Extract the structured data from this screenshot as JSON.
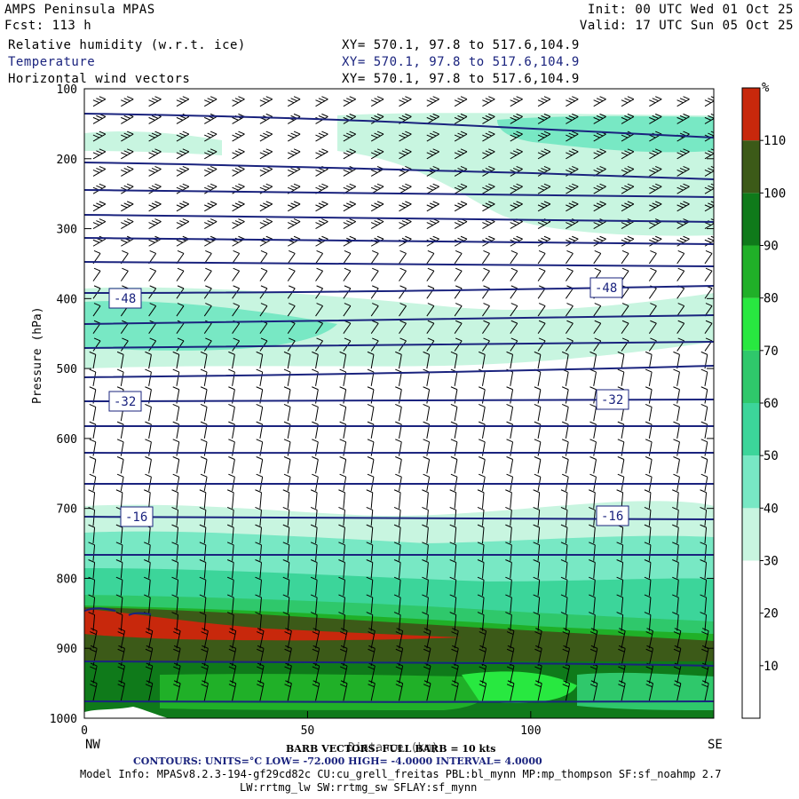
{
  "header": {
    "title": "AMPS Peninsula MPAS",
    "forecast": "Fcst:  113 h",
    "init": "Init: 00 UTC Wed 01 Oct 25",
    "valid": "Valid: 17 UTC Sun 05 Oct 25",
    "field1": "Relative humidity (w.r.t. ice)",
    "field2": "Temperature",
    "field3": "Horizontal wind vectors",
    "xy1": "XY= 570.1, 97.8 to 517.6,104.9",
    "xy2": "XY= 570.1, 97.8 to 517.6,104.9",
    "xy3": "XY= 570.1, 97.8 to 517.6,104.9"
  },
  "axes": {
    "ylabel": "Pressure (hPa)",
    "xlabel": "Distance (km)",
    "left_end": "NW",
    "right_end": "SE",
    "colorbar_unit": "%"
  },
  "footer": {
    "barb": "BARB VECTORS: FULL BARB = 10 kts",
    "contours": "CONTOURS:  UNITS=°C  LOW= -72.000      HIGH= -4.0000      INTERVAL=   4.0000",
    "model1": "Model Info: MPASv8.2.3-194-gf29cd82c CU:cu_grell_freitas PBL:bl_mynn MP:mp_thompson SF:sf_noahmp 2.7",
    "model2": "LW:rrtmg_lw SW:rrtmg_sw SFLAY:sf_mynn"
  },
  "colors": {
    "contour": "#1a237e",
    "rh_levels": [
      "#ffffff",
      "#ffffff",
      "#ffffff",
      "#c8f5e0",
      "#78e8c4",
      "#3cd59a",
      "#2fc86b",
      "#28e840",
      "#20b028",
      "#0f7a1a",
      "#3c5a18",
      "#c8280c"
    ]
  },
  "chart_data": {
    "type": "heatmap",
    "title": "",
    "xlabel": "Distance (km)",
    "ylabel": "Pressure (hPa)",
    "xlim": [
      0,
      141
    ],
    "ylim": [
      1000,
      100
    ],
    "x_ticks": [
      0,
      50,
      100
    ],
    "y_ticks": [
      100,
      200,
      300,
      400,
      500,
      600,
      700,
      800,
      900,
      1000
    ],
    "colorbar": {
      "unit": "%",
      "bounds": [
        10,
        20,
        30,
        40,
        50,
        60,
        70,
        80,
        90,
        100,
        110
      ],
      "tick_labels": [
        "10",
        "20",
        "30",
        "40",
        "50",
        "60",
        "70",
        "80",
        "90",
        "100",
        "110"
      ]
    },
    "rh_layers": [
      {
        "range_hPa": [
          1000,
          930
        ],
        "rh_pct": "80-100"
      },
      {
        "range_hPa": [
          930,
          880
        ],
        "rh_pct": "90-105"
      },
      {
        "range_hPa": [
          880,
          845
        ],
        "rh_pct": "100-115 (west)"
      },
      {
        "range_hPa": [
          845,
          800
        ],
        "rh_pct": "60-90"
      },
      {
        "range_hPa": [
          800,
          730
        ],
        "rh_pct": "40-55"
      },
      {
        "range_hPa": [
          730,
          500
        ],
        "rh_pct": "10-25"
      },
      {
        "range_hPa": [
          500,
          400
        ],
        "rh_pct": "30-50 (west maximum)"
      },
      {
        "range_hPa": [
          400,
          260
        ],
        "rh_pct": "15-30"
      },
      {
        "range_hPa": [
          260,
          130
        ],
        "rh_pct": "30-40 (east)"
      }
    ],
    "temperature_contour_labels": [
      {
        "value": -48,
        "label": "-48"
      },
      {
        "value": -32,
        "label": "-32"
      },
      {
        "value": -16,
        "label": "-16"
      }
    ],
    "temperature_contours_degC": {
      "low": -72,
      "high": -4,
      "interval": 4
    }
  }
}
